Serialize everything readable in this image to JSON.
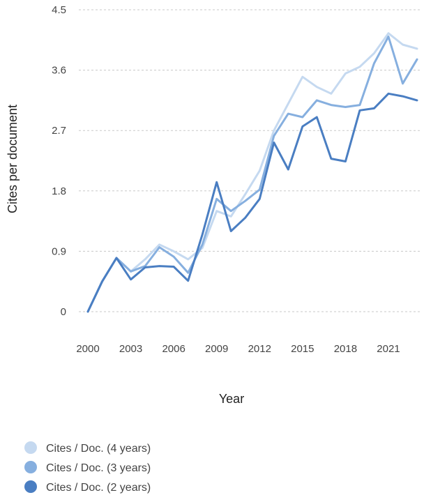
{
  "chart_data": {
    "type": "line",
    "title": "",
    "xlabel": "Year",
    "ylabel": "Cites per document",
    "xlim": [
      2000,
      2023
    ],
    "ylim": [
      0,
      4.5
    ],
    "yticks": [
      0,
      0.9,
      1.8,
      2.7,
      3.6,
      4.5
    ],
    "yticklabels": [
      "0",
      "0.9",
      "1.8",
      "2.7",
      "3.6",
      "4.5"
    ],
    "xticks": [
      2000,
      2003,
      2006,
      2009,
      2012,
      2015,
      2018,
      2021
    ],
    "xticklabels": [
      "2000",
      "2003",
      "2006",
      "2009",
      "2012",
      "2015",
      "2018",
      "2021"
    ],
    "grid": true,
    "legend_position": "bottom-left",
    "x": [
      2000,
      2001,
      2002,
      2003,
      2004,
      2005,
      2006,
      2007,
      2008,
      2009,
      2010,
      2011,
      2012,
      2013,
      2014,
      2015,
      2016,
      2017,
      2018,
      2019,
      2020,
      2021,
      2022,
      2023
    ],
    "series": [
      {
        "name": "Cites / Doc. (4 years)",
        "color": "#c5d9f0",
        "values": [
          0,
          0.45,
          0.8,
          0.6,
          0.78,
          1.0,
          0.9,
          0.78,
          0.95,
          1.5,
          1.42,
          1.75,
          2.1,
          2.7,
          3.1,
          3.5,
          3.35,
          3.25,
          3.55,
          3.65,
          3.85,
          4.15,
          3.98,
          3.92
        ]
      },
      {
        "name": "Cites / Doc. (3 years)",
        "color": "#86afdf",
        "values": [
          0,
          0.45,
          0.8,
          0.6,
          0.68,
          0.96,
          0.82,
          0.58,
          1.0,
          1.68,
          1.5,
          1.65,
          1.82,
          2.62,
          2.95,
          2.9,
          3.15,
          3.08,
          3.05,
          3.08,
          3.7,
          4.1,
          3.4,
          3.76
        ]
      },
      {
        "name": "Cites / Doc. (2 years)",
        "color": "#4a7ec2",
        "values": [
          0,
          0.45,
          0.8,
          0.48,
          0.66,
          0.68,
          0.67,
          0.46,
          1.15,
          1.93,
          1.2,
          1.4,
          1.68,
          2.52,
          2.12,
          2.76,
          2.9,
          2.28,
          2.24,
          3.0,
          3.03,
          3.25,
          3.21,
          3.15
        ]
      }
    ]
  }
}
